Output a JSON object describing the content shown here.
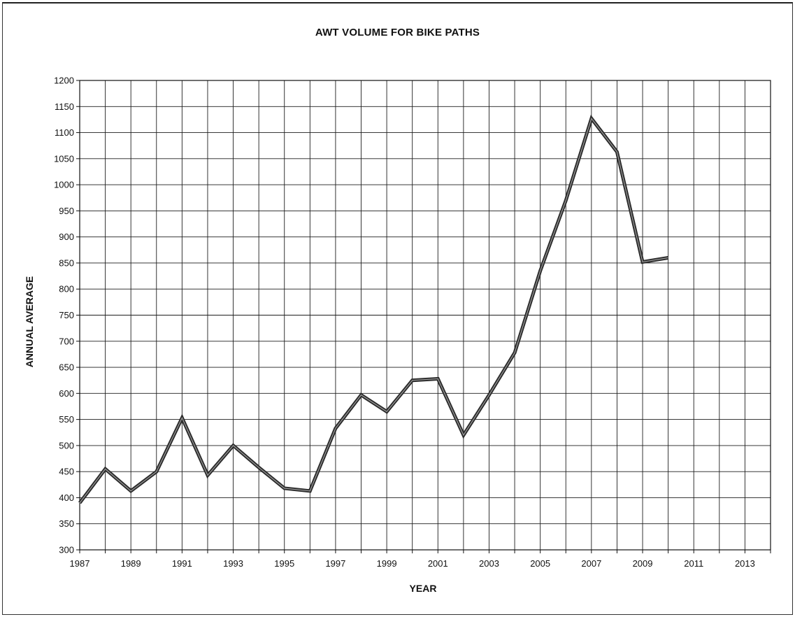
{
  "chart_data": {
    "type": "line",
    "title": "AWT VOLUME FOR BIKE PATHS",
    "xlabel": "YEAR",
    "ylabel": "ANNUAL AVERAGE",
    "xlim": [
      1987,
      2014
    ],
    "ylim": [
      300,
      1200
    ],
    "x_ticks": [
      1987,
      1989,
      1991,
      1993,
      1995,
      1997,
      1999,
      2001,
      2003,
      2005,
      2007,
      2009,
      2011,
      2013
    ],
    "y_ticks": [
      300,
      350,
      400,
      450,
      500,
      550,
      600,
      650,
      700,
      750,
      800,
      850,
      900,
      950,
      1000,
      1050,
      1100,
      1150,
      1200
    ],
    "grid": true,
    "legend": "none",
    "series": [
      {
        "color": "#2b2b2b",
        "x": [
          1987,
          1988,
          1989,
          1990,
          1991,
          1992,
          1993,
          1994,
          1995,
          1996,
          1997,
          1998,
          1999,
          2000,
          2001,
          2002,
          2003,
          2004,
          2005,
          2006,
          2007,
          2008,
          2009,
          2010
        ],
        "values": [
          390,
          455,
          413,
          450,
          553,
          443,
          500,
          458,
          418,
          413,
          533,
          597,
          565,
          625,
          628,
          520,
          597,
          678,
          835,
          970,
          1127,
          1063,
          852,
          860
        ]
      }
    ]
  }
}
